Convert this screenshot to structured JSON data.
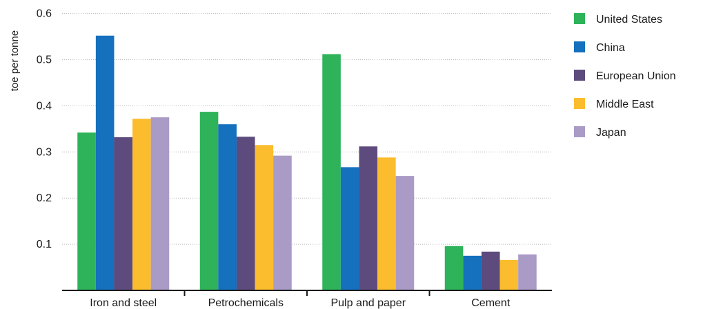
{
  "chart_data": {
    "type": "bar",
    "title": "",
    "xlabel": "",
    "ylabel": "toe per tonne",
    "ylim": [
      0,
      0.6
    ],
    "yticks": [
      0.1,
      0.2,
      0.3,
      0.4,
      0.5,
      0.6
    ],
    "ytick_labels": [
      "0.1",
      "0.2",
      "0.3",
      "0.4",
      "0.5",
      "0.6"
    ],
    "grid": true,
    "legend_position": "right",
    "categories": [
      "Iron and steel",
      "Petrochemicals",
      "Pulp and paper",
      "Cement"
    ],
    "series": [
      {
        "name": "United States",
        "color": "#2eb35a",
        "values": [
          0.342,
          0.387,
          0.512,
          0.096
        ]
      },
      {
        "name": "China",
        "color": "#1570be",
        "values": [
          0.552,
          0.36,
          0.267,
          0.075
        ]
      },
      {
        "name": "European Union",
        "color": "#5e4b7e",
        "values": [
          0.332,
          0.333,
          0.312,
          0.084
        ]
      },
      {
        "name": "Middle East",
        "color": "#fbbd2e",
        "values": [
          0.372,
          0.315,
          0.288,
          0.066
        ]
      },
      {
        "name": "Japan",
        "color": "#a99bc6",
        "values": [
          0.375,
          0.292,
          0.248,
          0.078
        ]
      }
    ]
  }
}
